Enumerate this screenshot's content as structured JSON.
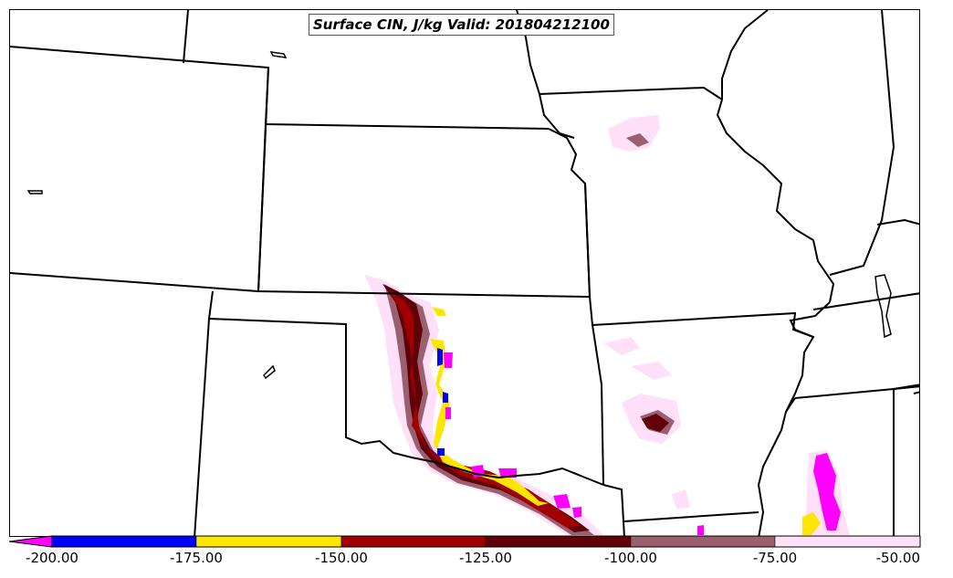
{
  "title": "Surface CIN, J/kg Valid: 201804212100",
  "colorbar": {
    "ticks": [
      "-200.00",
      "-175.00",
      "-150.00",
      "-125.00",
      "-100.00",
      "-75.00",
      "-50.00"
    ],
    "colors": [
      "#0000ff",
      "#ffe600",
      "#a00000",
      "#600008",
      "#9a6070",
      "#ffe0f8"
    ],
    "under_color": "#ff00ff"
  },
  "colors": {
    "boundary": "#000000",
    "magenta": "#ff00ff",
    "blue": "#0000ff",
    "yellow": "#ffe600",
    "red": "#a00000",
    "darkred": "#600008",
    "mauve": "#9a6070",
    "pink": "#ffe0f8"
  }
}
